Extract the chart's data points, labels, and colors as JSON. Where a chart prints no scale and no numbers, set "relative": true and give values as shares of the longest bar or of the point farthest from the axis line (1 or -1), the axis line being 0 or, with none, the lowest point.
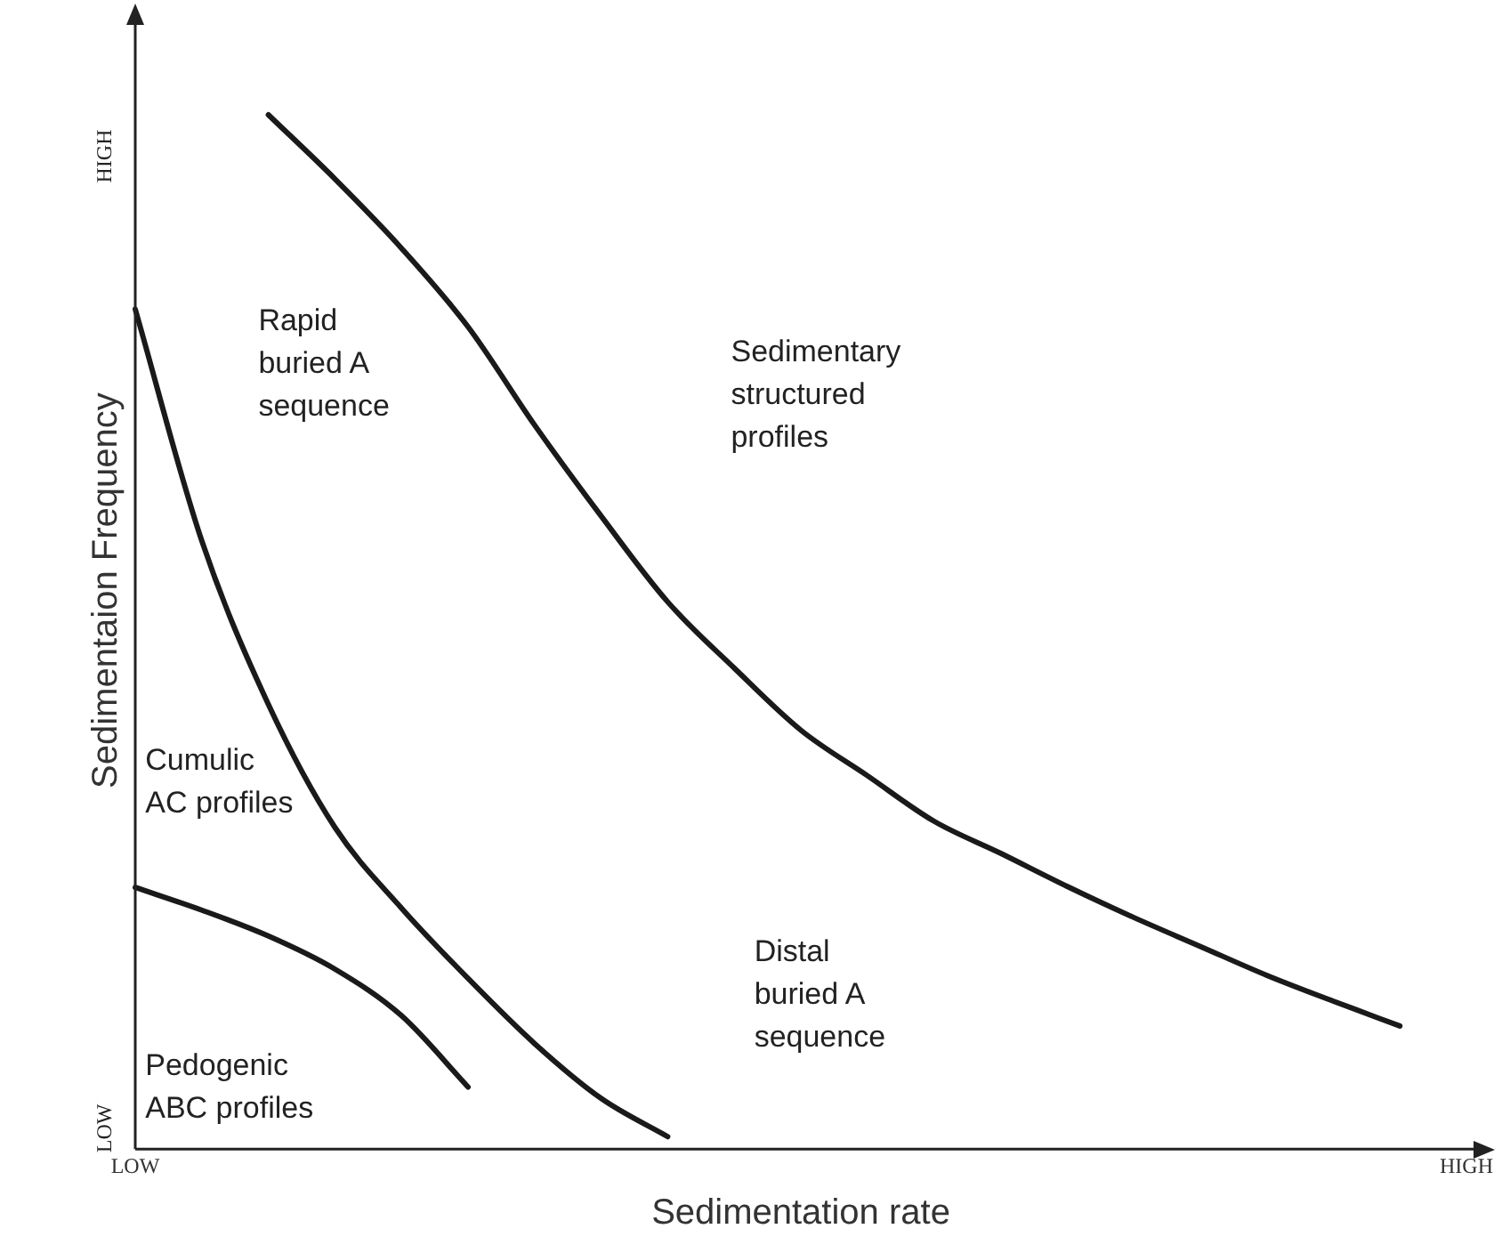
{
  "chart_data": {
    "type": "line",
    "relative": true,
    "xlabel": "Sedimentation rate",
    "ylabel": "Sedimentaion Frequency",
    "categories": [
      "LOW",
      null,
      null,
      null,
      null,
      null,
      null,
      null,
      null,
      null,
      null,
      null,
      null,
      null,
      null,
      null,
      null,
      null,
      null,
      null,
      "HIGH"
    ],
    "grid": false,
    "legend": false,
    "marker": "none",
    "line_style": "solid",
    "series": [
      {
        "color": "#1a1a1a",
        "values": [
          0.253,
          0.231,
          0.206,
          0.174,
          0.129,
          0.06,
          null,
          null,
          null,
          null,
          null,
          null,
          null,
          null,
          null,
          null,
          null,
          null,
          null,
          null,
          null
        ]
      },
      {
        "color": "#1a1a1a",
        "values": [
          0.812,
          0.588,
          0.43,
          0.311,
          0.233,
          0.165,
          0.102,
          0.049,
          0.012,
          null,
          null,
          null,
          null,
          null,
          null,
          null,
          null,
          null,
          null,
          null,
          null
        ]
      },
      {
        "color": "#1a1a1a",
        "values": [
          null,
          null,
          1,
          0.938,
          0.871,
          0.795,
          0.7,
          0.612,
          0.529,
          0.465,
          0.405,
          0.361,
          0.317,
          0.286,
          0.254,
          0.224,
          0.196,
          0.168,
          0.143,
          0.119,
          null
        ]
      }
    ],
    "annotations": [
      "Rapid\nburied A\nsequence",
      "Sedimentary\nstructured\nprofiles",
      "Cumulic\nAC profiles",
      "Distal\nburied A\nsequence",
      "Pedogenic\nABC profiles",
      "LOW",
      "HIGH"
    ]
  }
}
